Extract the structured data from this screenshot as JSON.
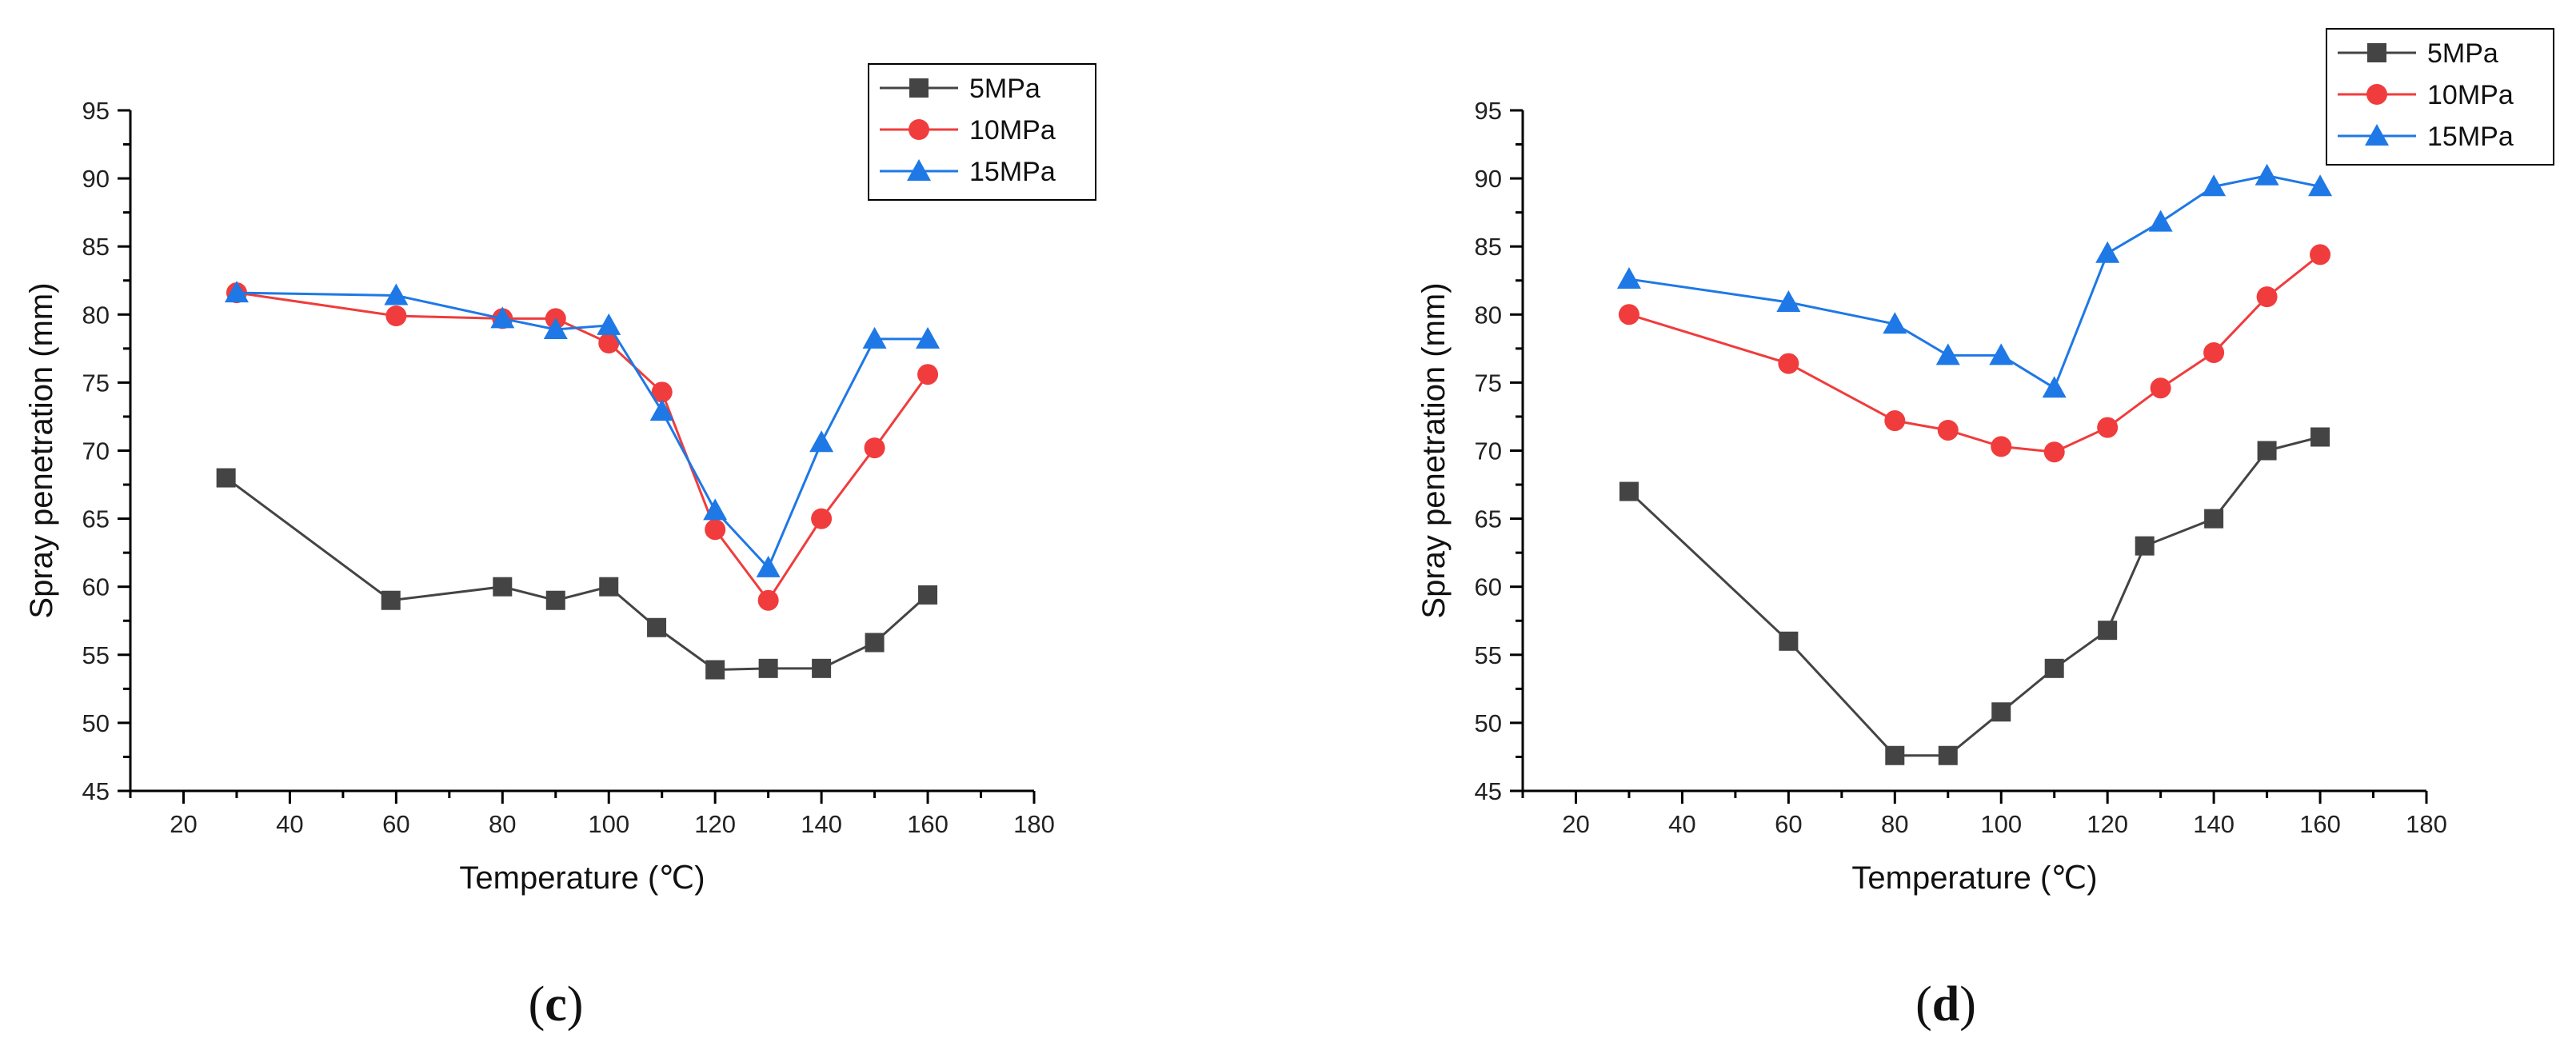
{
  "chart_data": [
    {
      "type": "line",
      "panel_label": "c",
      "xlabel": "Temperature (℃)",
      "ylabel": "Spray penetration (mm)",
      "xlim": [
        10,
        180
      ],
      "ylim": [
        45,
        95
      ],
      "xticks": [
        20,
        40,
        60,
        80,
        100,
        120,
        140,
        160,
        180
      ],
      "yticks": [
        45,
        50,
        55,
        60,
        65,
        70,
        75,
        80,
        85,
        90,
        95
      ],
      "legend_position": "top-right",
      "grid": false,
      "series": [
        {
          "name": "5MPa",
          "color": "#444444",
          "marker": "square",
          "x": [
            28,
            59,
            80,
            90,
            100,
            109,
            120,
            130,
            140,
            150,
            160
          ],
          "y": [
            68.0,
            59.0,
            60.0,
            59.0,
            60.0,
            57.0,
            53.9,
            54.0,
            54.0,
            55.9,
            59.4
          ]
        },
        {
          "name": "10MPa",
          "color": "#f03c3c",
          "marker": "circle",
          "x": [
            30,
            60,
            80,
            90,
            100,
            110,
            120,
            130,
            140,
            150,
            160
          ],
          "y": [
            81.6,
            79.9,
            79.7,
            79.7,
            77.9,
            74.3,
            64.2,
            59.0,
            65.0,
            70.2,
            75.6
          ]
        },
        {
          "name": "15MPa",
          "color": "#1e78e6",
          "marker": "triangle",
          "x": [
            30,
            60,
            80,
            90,
            100,
            110,
            120,
            130,
            140,
            150,
            160
          ],
          "y": [
            81.6,
            81.4,
            79.7,
            78.9,
            79.2,
            72.9,
            65.6,
            61.4,
            70.6,
            78.2,
            78.2
          ]
        }
      ]
    },
    {
      "type": "line",
      "panel_label": "d",
      "xlabel": "Temperature (℃)",
      "ylabel": "Spray penetration (mm)",
      "xlim": [
        10,
        180
      ],
      "ylim": [
        45,
        95
      ],
      "xticks": [
        20,
        40,
        60,
        80,
        100,
        120,
        140,
        160,
        180
      ],
      "yticks": [
        45,
        50,
        55,
        60,
        65,
        70,
        75,
        80,
        85,
        90,
        95
      ],
      "legend_position": "top-right",
      "grid": false,
      "series": [
        {
          "name": "5MPa",
          "color": "#444444",
          "marker": "square",
          "x": [
            30,
            60,
            80,
            90,
            100,
            110,
            120,
            127,
            140,
            150,
            160
          ],
          "y": [
            67.0,
            56.0,
            47.6,
            47.6,
            50.8,
            54.0,
            56.8,
            63.0,
            65.0,
            70.0,
            71.0
          ]
        },
        {
          "name": "10MPa",
          "color": "#f03c3c",
          "marker": "circle",
          "x": [
            30,
            60,
            80,
            90,
            100,
            110,
            120,
            130,
            140,
            150,
            160
          ],
          "y": [
            80.0,
            76.4,
            72.2,
            71.5,
            70.3,
            69.9,
            71.7,
            74.6,
            77.2,
            81.3,
            84.4
          ]
        },
        {
          "name": "15MPa",
          "color": "#1e78e6",
          "marker": "triangle",
          "x": [
            30,
            60,
            80,
            90,
            100,
            110,
            120,
            130,
            140,
            150,
            160
          ],
          "y": [
            82.6,
            80.9,
            79.3,
            77.0,
            77.0,
            74.6,
            84.5,
            86.8,
            89.4,
            90.2,
            89.4
          ]
        }
      ]
    }
  ]
}
